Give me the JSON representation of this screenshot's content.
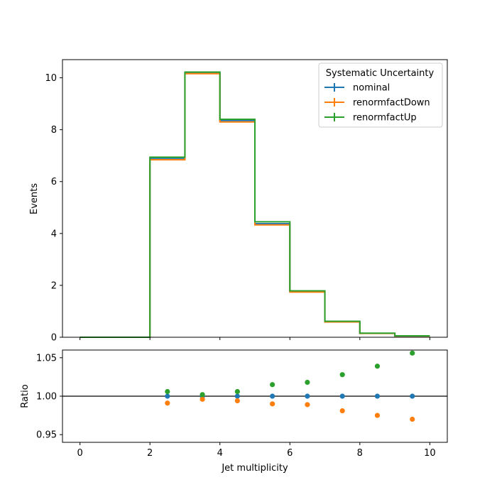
{
  "chart_data": [
    {
      "type": "step",
      "panel": "main",
      "xlabel": "",
      "ylabel": "Events",
      "xlim": [
        -0.5,
        10.5
      ],
      "ylim": [
        0,
        10.7
      ],
      "xticks": [
        0,
        2,
        4,
        6,
        8,
        10
      ],
      "yticks": [
        0,
        2,
        4,
        6,
        8,
        10
      ],
      "bin_edges": [
        0,
        1,
        2,
        3,
        4,
        5,
        6,
        7,
        8,
        9,
        10
      ],
      "legend": {
        "title": "Systematic Uncertainty",
        "placement": "top-right"
      },
      "series": [
        {
          "name": "nominal",
          "color": "#1f77b4",
          "values": [
            0,
            0,
            6.9,
            10.2,
            8.35,
            4.38,
            1.76,
            0.6,
            0.15,
            0.05
          ]
        },
        {
          "name": "renormfactDown",
          "color": "#ff7f0e",
          "values": [
            0,
            0,
            6.84,
            10.16,
            8.3,
            4.33,
            1.74,
            0.59,
            0.146,
            0.048
          ]
        },
        {
          "name": "renormfactUp",
          "color": "#2ca02c",
          "values": [
            0,
            0,
            6.94,
            10.22,
            8.4,
            4.45,
            1.79,
            0.617,
            0.156,
            0.053
          ]
        }
      ]
    },
    {
      "type": "scatter",
      "panel": "ratio",
      "xlabel": "Jet multiplicity",
      "ylabel": "Ratio",
      "xlim": [
        -0.5,
        10.5
      ],
      "ylim": [
        0.94,
        1.06
      ],
      "xticks": [
        0,
        2,
        4,
        6,
        8,
        10
      ],
      "yticks": [
        0.95,
        1.0,
        1.05
      ],
      "ytick_labels": [
        "0.95",
        "1.00",
        "1.05"
      ],
      "reference_line": 1.0,
      "x": [
        2.5,
        3.5,
        4.5,
        5.5,
        6.5,
        7.5,
        8.5,
        9.5
      ],
      "series": [
        {
          "name": "nominal",
          "color": "#1f77b4",
          "values": [
            1.0,
            1.0,
            1.0,
            1.0,
            1.0,
            1.0,
            1.0,
            1.0
          ]
        },
        {
          "name": "renormfactDown",
          "color": "#ff7f0e",
          "values": [
            0.991,
            0.996,
            0.994,
            0.99,
            0.989,
            0.981,
            0.975,
            0.97
          ]
        },
        {
          "name": "renormfactUp",
          "color": "#2ca02c",
          "values": [
            1.006,
            1.002,
            1.006,
            1.015,
            1.018,
            1.028,
            1.039,
            1.056
          ]
        }
      ]
    }
  ]
}
